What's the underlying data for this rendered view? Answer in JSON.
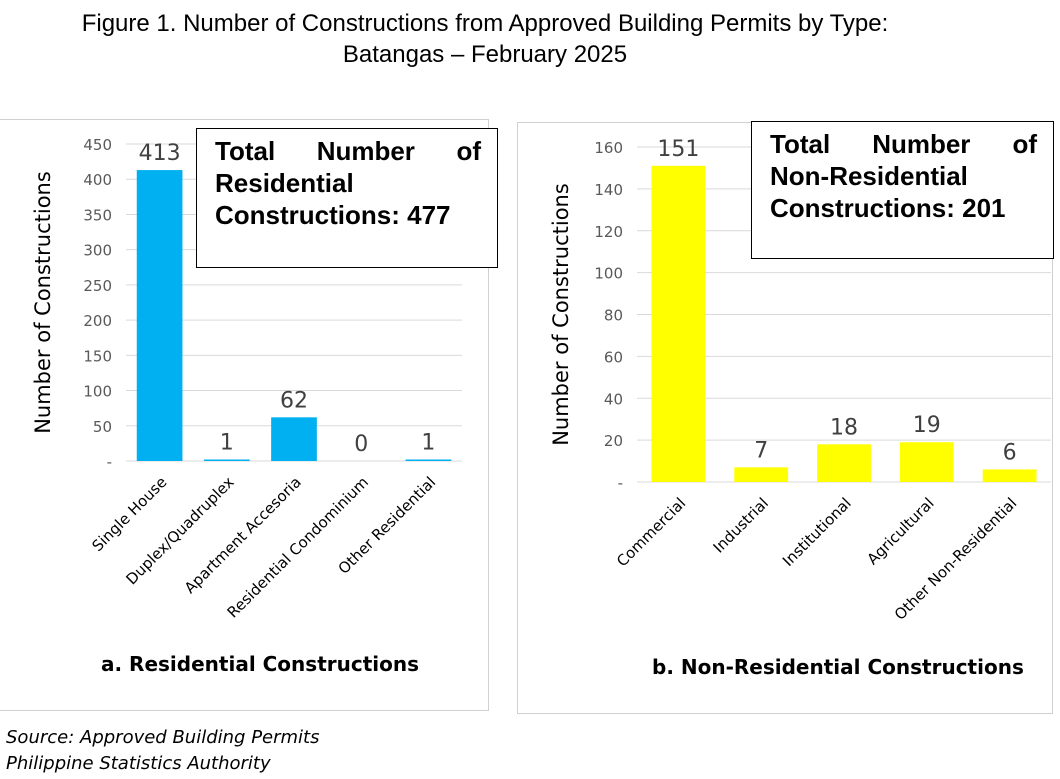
{
  "figure": {
    "title_line1": "Figure 1.  Number of Constructions from Approved Building Permits by Type:",
    "title_line2": "Batangas – February 2025"
  },
  "source": {
    "line1": "Source: Approved Building Permits",
    "line2": "Philippine Statistics Authority"
  },
  "chart_data": [
    {
      "type": "bar",
      "caption": "a. Residential Constructions",
      "ylabel": "Number of Constructions",
      "xlabel": "",
      "categories": [
        "Single House",
        "Duplex/Quadruplex",
        "Apartment Accesoria",
        "Residential Condominium",
        "Other Residential"
      ],
      "values": [
        413,
        1,
        62,
        0,
        1
      ],
      "ylim": [
        0,
        450
      ],
      "yticks": [
        0,
        50,
        100,
        150,
        200,
        250,
        300,
        350,
        400,
        450
      ],
      "ytick_labels": [
        "-",
        "50",
        "100",
        "150",
        "200",
        "250",
        "300",
        "350",
        "400",
        "450"
      ],
      "bar_color": "#00B0F0",
      "grid": true,
      "total_box": [
        "Total Number of",
        "Residential",
        "Constructions: 477"
      ]
    },
    {
      "type": "bar",
      "caption": "b. Non-Residential Constructions",
      "ylabel": "Number of Constructions",
      "xlabel": "",
      "categories": [
        "Commercial",
        "Industrial",
        "Institutional",
        "Agricultural",
        "Other Non-Residential"
      ],
      "values": [
        151,
        7,
        18,
        19,
        6
      ],
      "ylim": [
        0,
        160
      ],
      "yticks": [
        0,
        20,
        40,
        60,
        80,
        100,
        120,
        140,
        160
      ],
      "ytick_labels": [
        "-",
        "20",
        "40",
        "60",
        "80",
        "100",
        "120",
        "140",
        "160"
      ],
      "bar_color": "#FFFF00",
      "grid": true,
      "total_box": [
        "Total Number of",
        "Non-Residential",
        "Constructions: 201"
      ]
    }
  ]
}
